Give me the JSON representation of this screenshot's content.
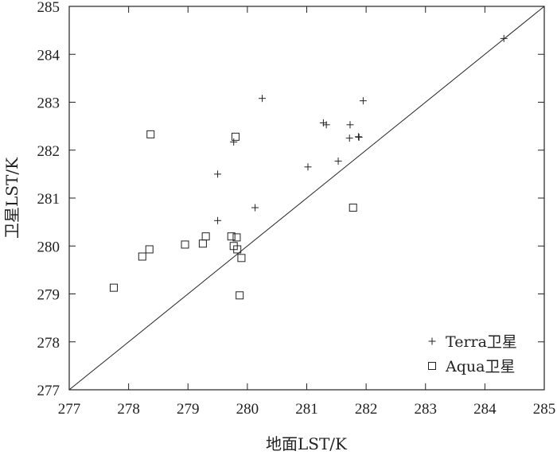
{
  "chart_data": {
    "type": "scatter",
    "xlabel": "地面LST/K",
    "ylabel": "卫星LST/K",
    "xlim": [
      277,
      285
    ],
    "ylim": [
      277,
      285
    ],
    "xticks": [
      "277",
      "278",
      "279",
      "280",
      "281",
      "282",
      "283",
      "284",
      "285"
    ],
    "yticks": [
      "277",
      "278",
      "279",
      "280",
      "281",
      "282",
      "283",
      "284",
      "285"
    ],
    "grid": false,
    "legend_position": "bottom-right",
    "reference_line": "y = x",
    "series": [
      {
        "name": "Terra卫星",
        "marker": "plus",
        "points": [
          [
            279.5,
            281.5
          ],
          [
            279.5,
            280.53
          ],
          [
            279.77,
            282.17
          ],
          [
            280.13,
            280.8
          ],
          [
            280.25,
            283.08
          ],
          [
            281.02,
            281.65
          ],
          [
            281.28,
            282.57
          ],
          [
            281.33,
            282.53
          ],
          [
            281.53,
            281.77
          ],
          [
            281.72,
            282.25
          ],
          [
            281.73,
            282.53
          ],
          [
            281.87,
            282.28
          ],
          [
            281.88,
            282.27
          ],
          [
            281.95,
            283.03
          ],
          [
            284.32,
            284.33
          ]
        ]
      },
      {
        "name": "Aqua卫星",
        "marker": "square",
        "points": [
          [
            277.75,
            279.13
          ],
          [
            278.23,
            279.78
          ],
          [
            278.35,
            279.93
          ],
          [
            278.37,
            282.33
          ],
          [
            278.95,
            280.03
          ],
          [
            279.25,
            280.05
          ],
          [
            279.3,
            280.2
          ],
          [
            279.73,
            280.2
          ],
          [
            279.77,
            280.0
          ],
          [
            279.8,
            282.28
          ],
          [
            279.82,
            280.18
          ],
          [
            279.83,
            279.93
          ],
          [
            279.87,
            278.97
          ],
          [
            279.9,
            279.75
          ],
          [
            281.78,
            280.8
          ]
        ]
      }
    ]
  }
}
